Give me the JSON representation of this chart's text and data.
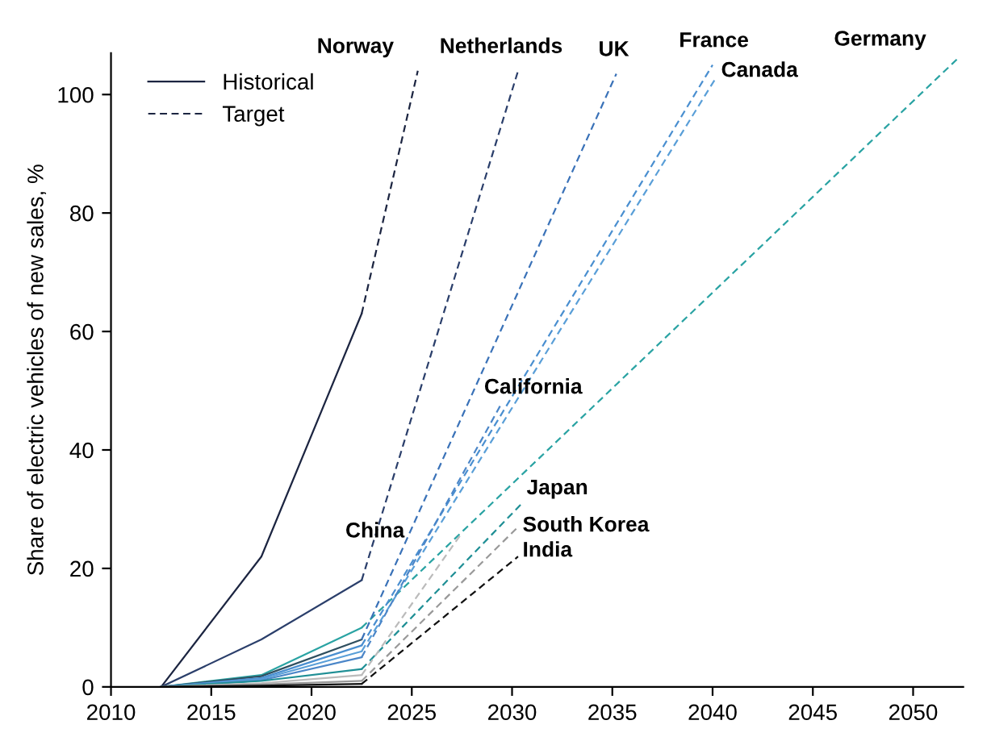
{
  "chart_data": {
    "type": "line",
    "ylabel": "Share of electric vehicles of new sales, %",
    "xlim": [
      2010,
      2052.5
    ],
    "ylim": [
      0,
      107
    ],
    "xticks": [
      2010,
      2015,
      2020,
      2025,
      2030,
      2035,
      2040,
      2045,
      2050
    ],
    "yticks": [
      0,
      20,
      40,
      60,
      80,
      100
    ],
    "grid": false,
    "legend": "top left",
    "marker": "none",
    "series": [
      {
        "name": "Historical",
        "color": "#1c2541",
        "line_style": "solid",
        "x": [
          2012.5,
          2017.5,
          2022.5
        ],
        "values": [
          0,
          22,
          63
        ]
      },
      {
        "name": "Target",
        "color": "#1c2541",
        "line_style": "dashed",
        "x": [
          2022.5,
          2025.3
        ],
        "values": [
          63,
          104
        ]
      },
      {
        "color": "#2b3f6b",
        "line_style": "solid",
        "x": [
          2012.5,
          2017.5,
          2022.5
        ],
        "values": [
          0,
          8,
          18
        ]
      },
      {
        "color": "#2b3f6b",
        "line_style": "dashed",
        "x": [
          2022.5,
          2030.3
        ],
        "values": [
          18,
          104
        ]
      },
      {
        "color": "#2aa3a3",
        "line_style": "solid",
        "x": [
          2012.5,
          2017.5,
          2022.5
        ],
        "values": [
          0,
          2,
          10
        ]
      },
      {
        "color": "#2aa3a3",
        "line_style": "dashed",
        "x": [
          2022.5,
          2052.2
        ],
        "values": [
          10,
          106
        ]
      },
      {
        "color": "#2f4f5f",
        "line_style": "solid",
        "x": [
          2012.5,
          2017.5,
          2022.5
        ],
        "values": [
          0,
          1.8,
          8
        ]
      },
      {
        "color": "#3a72b8",
        "line_style": "dashed",
        "x": [
          2022.5,
          2035.2
        ],
        "values": [
          8,
          103.5
        ]
      },
      {
        "color": "#4a8fd0",
        "line_style": "solid",
        "x": [
          2012.5,
          2017.5,
          2022.5
        ],
        "values": [
          0,
          1.5,
          7
        ]
      },
      {
        "color": "#4a8fd0",
        "line_style": "dashed",
        "x": [
          2022.5,
          2040
        ],
        "values": [
          7,
          105
        ]
      },
      {
        "color": "#5a9fd8",
        "line_style": "solid",
        "x": [
          2012.5,
          2017.5,
          2022.5
        ],
        "values": [
          0,
          1.3,
          6
        ]
      },
      {
        "color": "#5a9fd8",
        "line_style": "dashed",
        "x": [
          2022.5,
          2040.2
        ],
        "values": [
          6,
          103
        ]
      },
      {
        "color": "#4b86c8",
        "line_style": "solid",
        "x": [
          2012.5,
          2017.5,
          2022.5
        ],
        "values": [
          0,
          1.1,
          5
        ]
      },
      {
        "color": "#4b86c8",
        "line_style": "dashed",
        "x": [
          2022.5,
          2029.5
        ],
        "values": [
          5,
          48
        ]
      },
      {
        "color": "#1f8f95",
        "line_style": "solid",
        "x": [
          2012.5,
          2017.5,
          2022.5
        ],
        "values": [
          0,
          1,
          3
        ]
      },
      {
        "color": "#1f8f95",
        "line_style": "dashed",
        "x": [
          2022.5,
          2030.5
        ],
        "values": [
          3,
          31
        ]
      },
      {
        "color": "#bbbbbb",
        "line_style": "solid",
        "x": [
          2012.5,
          2017.5,
          2022.5
        ],
        "values": [
          0,
          0.6,
          2
        ]
      },
      {
        "color": "#bbbbbb",
        "line_style": "dashed",
        "x": [
          2022.5,
          2027.5
        ],
        "values": [
          2,
          26
        ]
      },
      {
        "color": "#999999",
        "line_style": "solid",
        "x": [
          2012.5,
          2017.5,
          2022.5
        ],
        "values": [
          0,
          0.4,
          1
        ]
      },
      {
        "color": "#999999",
        "line_style": "dashed",
        "x": [
          2022.5,
          2030.3
        ],
        "values": [
          1,
          27
        ]
      },
      {
        "color": "#111111",
        "line_style": "solid",
        "x": [
          2012.5,
          2017.5,
          2022.5
        ],
        "values": [
          0,
          0.2,
          0.5
        ]
      },
      {
        "color": "#111111",
        "line_style": "dashed",
        "x": [
          2022.5,
          2030.3
        ],
        "values": [
          0.5,
          22
        ]
      }
    ],
    "annotations": [
      {
        "text": "Norway",
        "x": 2025.3,
        "y": 104
      },
      {
        "text": "Netherlands",
        "x": 2030.3,
        "y": 104
      },
      {
        "text": "UK",
        "x": 2035.2,
        "y": 103.5
      },
      {
        "text": "France",
        "x": 2040,
        "y": 105
      },
      {
        "text": "Canada",
        "x": 2040.2,
        "y": 103
      },
      {
        "text": "Germany",
        "x": 2052.2,
        "y": 106
      },
      {
        "text": "California",
        "x": 2029.5,
        "y": 48
      },
      {
        "text": "Japan",
        "x": 2030.5,
        "y": 31
      },
      {
        "text": "China",
        "x": 2027.5,
        "y": 26
      },
      {
        "text": "South Korea",
        "x": 2030.3,
        "y": 27
      },
      {
        "text": "India",
        "x": 2030.3,
        "y": 22
      }
    ]
  }
}
